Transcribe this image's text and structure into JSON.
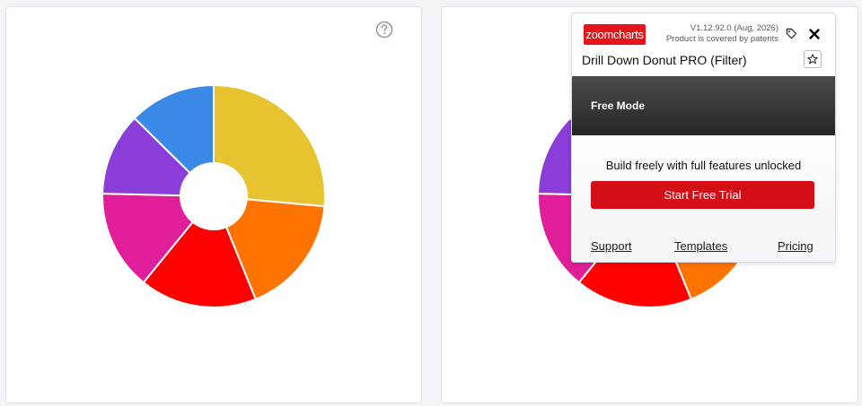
{
  "colors": {
    "yellow": "#e8c330",
    "orange": "#ff7300",
    "red": "#ff0000",
    "magenta": "#e01e9a",
    "purple": "#8a3dd9",
    "blue": "#3a89e6",
    "brand": "#e8141b",
    "trial_button": "#d40e16"
  },
  "left_card": {
    "help_icon": "question-circle-icon",
    "donut": {
      "slices": [
        {
          "name": "yellow",
          "value": 27.5
        },
        {
          "name": "orange",
          "value": 18.1
        },
        {
          "name": "red",
          "value": 17.7
        },
        {
          "name": "magenta",
          "value": 15.1
        },
        {
          "name": "purple",
          "value": 12.5
        },
        {
          "name": "blue",
          "value": 13.1
        }
      ]
    }
  },
  "popup": {
    "logo_text": "zoomcharts",
    "version": "V1.12.92.0 (Aug, 2026)",
    "patent_note": "Product is covered by patents",
    "tag_icon": "tag-icon",
    "close_icon": "close-icon",
    "title": "Drill Down Donut PRO (Filter)",
    "star_icon": "star-icon",
    "mode": "Free Mode",
    "promo_text": "Build freely with full features unlocked",
    "trial_button": "Start Free Trial",
    "links": {
      "support": "Support",
      "templates": "Templates",
      "pricing": "Pricing"
    }
  }
}
